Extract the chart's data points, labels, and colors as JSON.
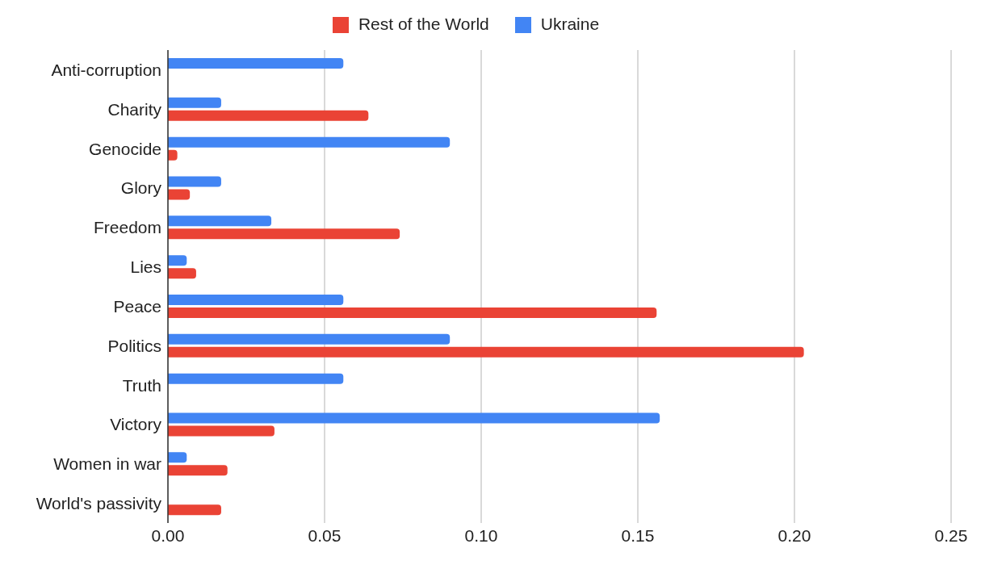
{
  "chart_data": {
    "type": "bar",
    "orientation": "horizontal",
    "categories": [
      "Anti-corruption",
      "Charity",
      "Genocide",
      "Glory",
      "Freedom",
      "Lies",
      "Peace",
      "Politics",
      "Truth",
      "Victory",
      "Women in war",
      "World's passivity"
    ],
    "series": [
      {
        "name": "Ukraine",
        "color": "#4285f4",
        "values": [
          0.056,
          0.017,
          0.09,
          0.017,
          0.033,
          0.006,
          0.056,
          0.09,
          0.056,
          0.157,
          0.006,
          null
        ]
      },
      {
        "name": "Rest of the World",
        "color": "#ea4335",
        "values": [
          null,
          0.064,
          0.003,
          0.007,
          0.074,
          0.009,
          0.156,
          0.203,
          null,
          0.034,
          0.019,
          0.017
        ]
      }
    ],
    "xlim": [
      0,
      0.25
    ],
    "xticks": [
      {
        "value": 0,
        "label": "0.00"
      },
      {
        "value": 0.05,
        "label": "0.05"
      },
      {
        "value": 0.1,
        "label": "0.10"
      },
      {
        "value": 0.15,
        "label": "0.15"
      },
      {
        "value": 0.2,
        "label": "0.20"
      },
      {
        "value": 0.25,
        "label": "0.25"
      }
    ],
    "grid": "x",
    "legend": "top"
  }
}
